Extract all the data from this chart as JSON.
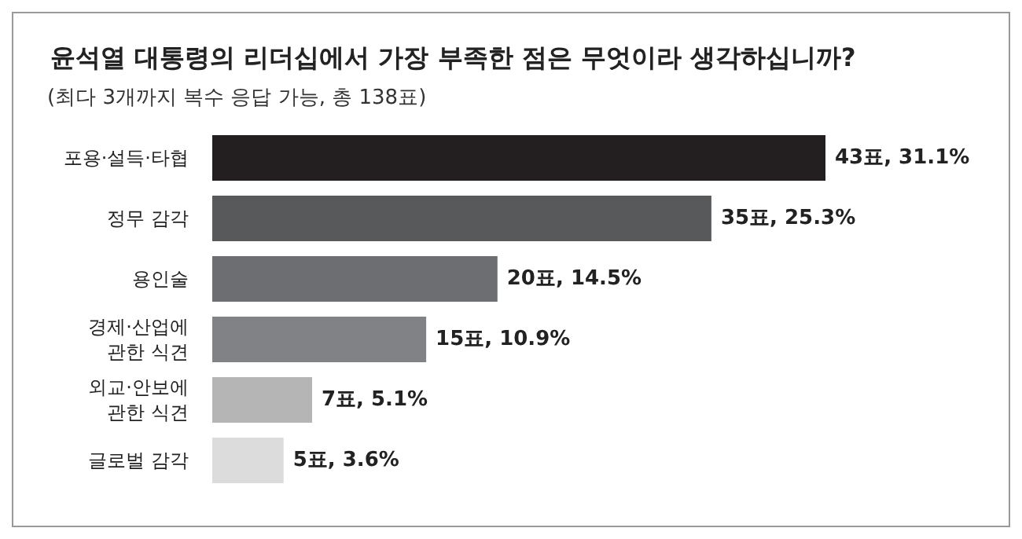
{
  "chart_data": {
    "type": "bar",
    "orientation": "horizontal",
    "title": "윤석열 대통령의 리더십에서 가장 부족한 점은 무엇이라 생각하십니까?",
    "subtitle": "(최다 3개까지 복수 응답 가능, 총 138표)",
    "categories": [
      "포용·설득·타협",
      "정무 감각",
      "용인술",
      "경제·산업에 관한 식견",
      "외교·안보에 관한 식견",
      "글로벌 감각"
    ],
    "values": [
      43,
      35,
      20,
      15,
      7,
      5
    ],
    "colors": [
      "#231f20",
      "#58595b",
      "#6d6e71",
      "#808285",
      "#b5b5b5",
      "#dcdcdc"
    ],
    "value_labels": [
      "43표, 31.1%",
      "35표, 25.3%",
      "20표, 14.5%",
      "15표, 10.9%",
      "7표, 5.1%",
      "5표, 3.6%"
    ]
  }
}
